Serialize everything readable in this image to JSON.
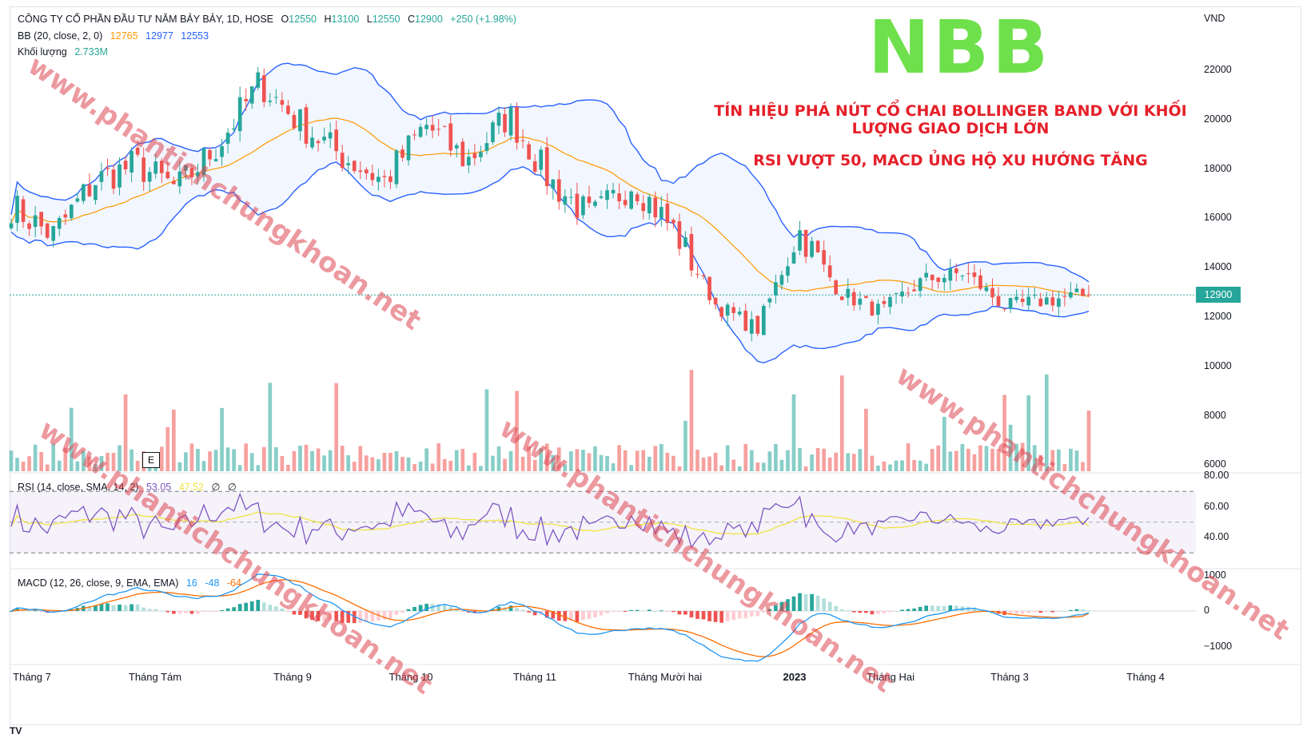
{
  "header": {
    "symbol_line": "CÔNG TY CỔ PHẦN ĐẦU TƯ NĂM BẢY BẢY, 1D, HOSE",
    "open_label": "O",
    "open": "12550",
    "high_label": "H",
    "high": "13100",
    "low_label": "L",
    "low": "12550",
    "close_label": "C",
    "close": "12900",
    "change": "+250 (+1.98%)"
  },
  "bb_legend": {
    "label": "BB (20, close, 2, 0)",
    "basis": "12765",
    "upper": "12977",
    "lower": "12553"
  },
  "volume_legend": {
    "label": "Khối lượng",
    "value": "2.733M"
  },
  "rsi_legend": {
    "label": "RSI (14, close, SMA, 14, 2)",
    "rsi": "53.05",
    "rsi_ma": "47.52",
    "extra1": "∅",
    "extra2": "∅"
  },
  "macd_legend": {
    "label": "MACD (12, 26, close, 9, EMA, EMA)",
    "hist": "16",
    "macd": "-48",
    "signal": "-64"
  },
  "currency": "VND",
  "price_axis": [
    "22000",
    "20000",
    "18000",
    "16000",
    "14000",
    "12000",
    "10000",
    "8000",
    "6000"
  ],
  "rsi_axis": [
    "80.00",
    "60.00",
    "40.00"
  ],
  "macd_axis": [
    "1000",
    "0",
    "−1000"
  ],
  "last_price_tag": "12900",
  "x_axis": [
    {
      "label": "Tháng 7",
      "bold": false
    },
    {
      "label": "Tháng Tám",
      "bold": false
    },
    {
      "label": "Tháng 9",
      "bold": false
    },
    {
      "label": "Tháng 10",
      "bold": false
    },
    {
      "label": "Tháng 11",
      "bold": false
    },
    {
      "label": "Tháng Mười hai",
      "bold": false
    },
    {
      "label": "2023",
      "bold": true
    },
    {
      "label": "Tháng Hai",
      "bold": false
    },
    {
      "label": "Tháng 3",
      "bold": false
    },
    {
      "label": "Tháng 4",
      "bold": false
    }
  ],
  "ticker": "NBB",
  "annotation_1": "TÍN HIỆU PHÁ NÚT CỔ CHAI BOLLINGER BAND VỚI KHỐI LƯỢNG GIAO DỊCH LỚN",
  "annotation_2": "RSI VƯỢT 50, MACD ỦNG HỘ XU HƯỚNG TĂNG",
  "watermark": "www.phantichchungkhoan.net",
  "event_marker": "E",
  "colors": {
    "up": "#26a69a",
    "down": "#ef5350",
    "bb_band": "#2962ff",
    "bb_basis": "#ff9800",
    "rsi": "#7e57c2",
    "rsi_ma": "#f0e442",
    "macd": "#2196f3",
    "signal": "#ff6d00"
  },
  "chart_data": [
    {
      "type": "candlestick",
      "title": "CÔNG TY CỔ PHẦN ĐẦU TƯ NĂM BẢY BẢY, 1D, HOSE",
      "ylabel": "VND",
      "ylim": [
        10000,
        22500
      ],
      "approx_close_path": [
        {
          "x": "Tháng 7",
          "y": 16500
        },
        {
          "x": "Tháng 7",
          "y": 15300
        },
        {
          "x": "Tháng 7",
          "y": 17500
        },
        {
          "x": "Tháng Tám",
          "y": 18200
        },
        {
          "x": "Tháng Tám",
          "y": 17200
        },
        {
          "x": "Tháng Tám",
          "y": 19000
        },
        {
          "x": "Tháng Tám",
          "y": 21500
        },
        {
          "x": "Tháng 9",
          "y": 19800
        },
        {
          "x": "Tháng 9",
          "y": 18500
        },
        {
          "x": "Tháng 9",
          "y": 17500
        },
        {
          "x": "Tháng 10",
          "y": 19800
        },
        {
          "x": "Tháng 10",
          "y": 18300
        },
        {
          "x": "Tháng 10",
          "y": 20200
        },
        {
          "x": "Tháng 10",
          "y": 17500
        },
        {
          "x": "Tháng 11",
          "y": 16000
        },
        {
          "x": "Tháng 11",
          "y": 17500
        },
        {
          "x": "Tháng 11",
          "y": 15500
        },
        {
          "x": "Tháng 11",
          "y": 12500
        },
        {
          "x": "Tháng Mười hai",
          "y": 11500
        },
        {
          "x": "Tháng Mười hai",
          "y": 15500
        },
        {
          "x": "Tháng Mười hai",
          "y": 13000
        },
        {
          "x": "Tháng Mười hai",
          "y": 12200
        },
        {
          "x": "2023",
          "y": 13500
        },
        {
          "x": "Tháng Hai",
          "y": 13800
        },
        {
          "x": "Tháng Hai",
          "y": 12400
        },
        {
          "x": "Tháng 3",
          "y": 12700
        },
        {
          "x": "Tháng 3",
          "y": 12900
        }
      ],
      "last": {
        "open": 12550,
        "high": 13100,
        "low": 12550,
        "close": 12900
      }
    },
    {
      "type": "line",
      "title": "BB (20, close, 2, 0)",
      "series": [
        {
          "name": "basis",
          "last": 12765
        },
        {
          "name": "upper",
          "last": 12977
        },
        {
          "name": "lower",
          "last": 12553
        }
      ]
    },
    {
      "type": "bar",
      "title": "Khối lượng",
      "last": "2.733M"
    },
    {
      "type": "line",
      "title": "RSI (14, close, SMA, 14, 2)",
      "ylim": [
        30,
        80
      ],
      "series": [
        {
          "name": "RSI",
          "last": 53.05
        },
        {
          "name": "RSI MA",
          "last": 47.52
        }
      ]
    },
    {
      "type": "bar",
      "title": "MACD (12, 26, close, 9, EMA, EMA)",
      "ylim": [
        -1300,
        1000
      ],
      "series": [
        {
          "name": "histogram",
          "last": 16
        },
        {
          "name": "MACD",
          "last": -48
        },
        {
          "name": "signal",
          "last": -64
        }
      ]
    }
  ]
}
